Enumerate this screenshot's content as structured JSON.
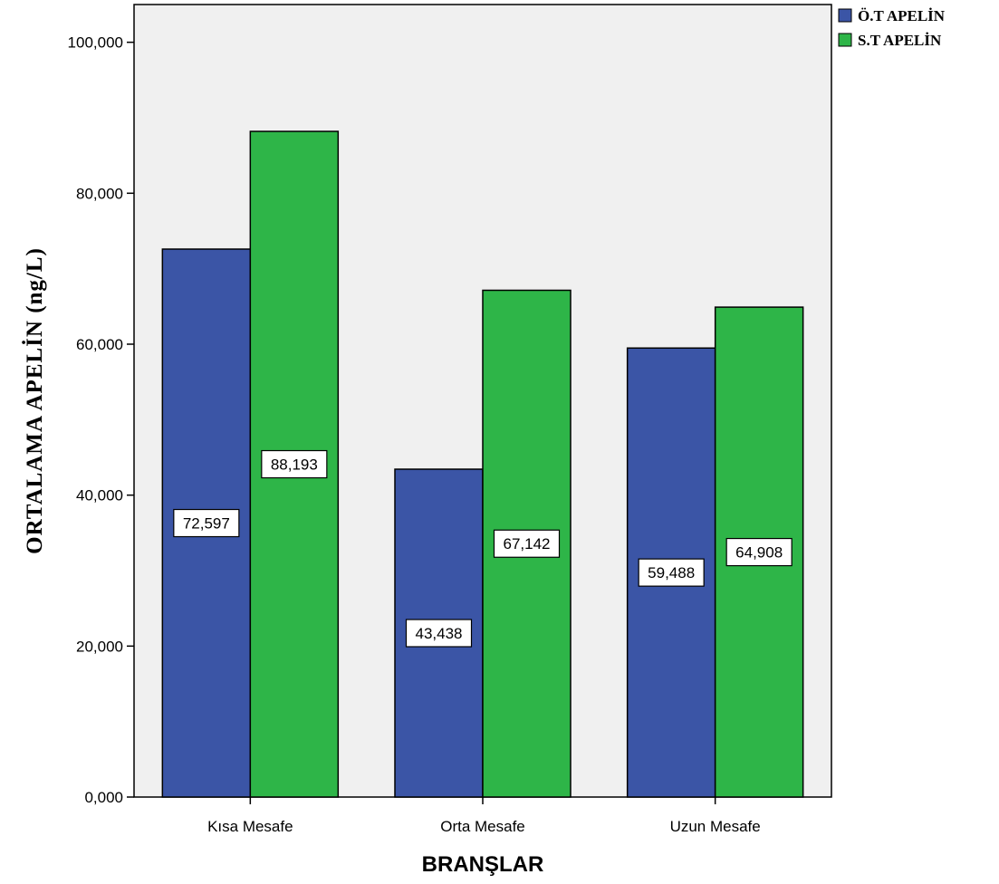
{
  "chart_data": {
    "type": "bar",
    "xlabel": "BRANŞLAR",
    "ylabel": "ORTALAMA APELİN  (ng/L)",
    "categories": [
      "Kısa Mesafe",
      "Orta Mesafe",
      "Uzun Mesafe"
    ],
    "series": [
      {
        "name": "Ö.T APELİN",
        "color": "#3b55a6",
        "values": [
          72.597,
          43.438,
          59.488
        ],
        "labels": [
          "72,597",
          "43,438",
          "59,488"
        ]
      },
      {
        "name": "S.T APELİN",
        "color": "#2eb548",
        "values": [
          88.193,
          67.142,
          64.908
        ],
        "labels": [
          "88,193",
          "67,142",
          "64,908"
        ]
      }
    ],
    "ylim": [
      0,
      105
    ],
    "yticks": [
      0,
      20,
      40,
      60,
      80,
      100
    ],
    "ytick_labels": [
      "0,000",
      "20,000",
      "40,000",
      "60,000",
      "80,000",
      "100,000"
    ],
    "grid": false,
    "legend": "top-right",
    "plot_background": "#f0f0f0"
  }
}
